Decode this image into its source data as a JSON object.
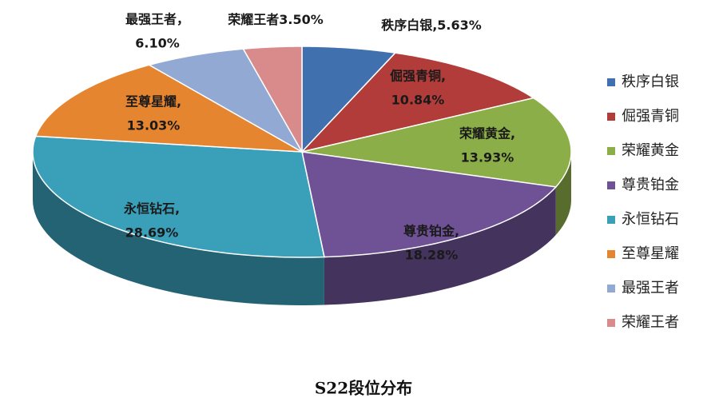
{
  "chart_data": {
    "type": "pie",
    "title": "S22段位分布",
    "categories": [
      "秩序白银",
      "倔强青铜",
      "荣耀黄金",
      "尊贵铂金",
      "永恒钻石",
      "至尊星耀",
      "最强王者",
      "荣耀王者"
    ],
    "values": [
      5.63,
      10.84,
      13.93,
      18.28,
      28.69,
      13.03,
      6.1,
      3.5
    ],
    "value_labels": [
      "5.63%",
      "10.84%",
      "13.93%",
      "18.28%",
      "28.69%",
      "13.03%",
      "6.10%",
      "3.50%"
    ],
    "data_label_names": [
      "秩序白银,",
      "倔强青铜,",
      "荣耀黄金,",
      "尊贵铂金,",
      "永恒钻石,",
      "至尊星耀,",
      "最强王者，",
      "荣耀王者"
    ],
    "colors": [
      "#4070ae",
      "#b23c39",
      "#8cae48",
      "#6e5295",
      "#3aa0ba",
      "#e6852f",
      "#91a9d3",
      "#d98a8b"
    ],
    "legend": "right"
  }
}
